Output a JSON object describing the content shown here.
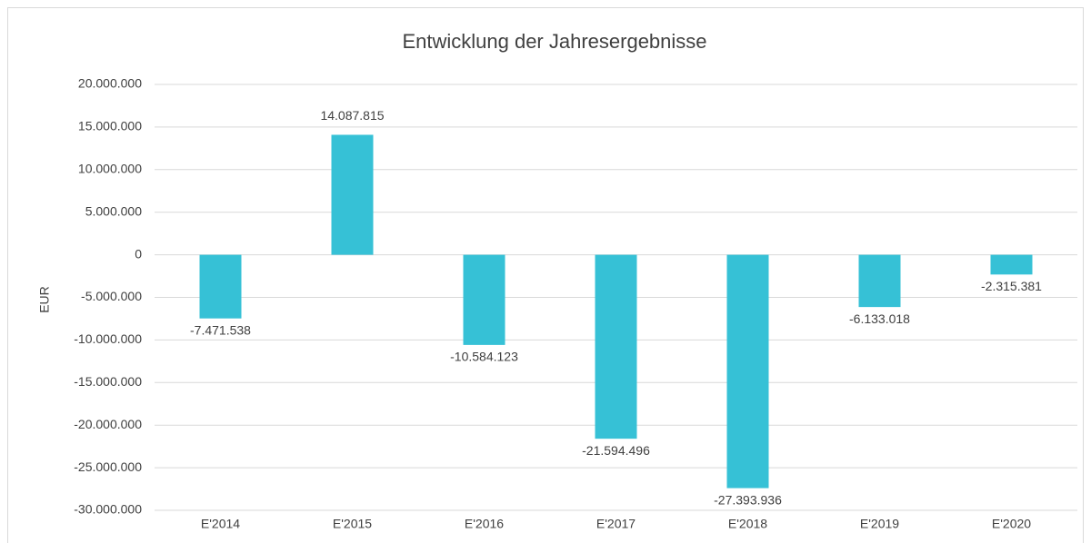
{
  "chart_data": {
    "type": "bar",
    "title": "Entwicklung der Jahresergebnisse",
    "y_label": "EUR",
    "categories": [
      "E'2014",
      "E'2015",
      "E'2016",
      "E'2017",
      "E'2018",
      "E'2019",
      "E'2020"
    ],
    "values": [
      -7471538,
      14087815,
      -10584123,
      -21594496,
      -27393936,
      -6133018,
      -2315381
    ],
    "value_labels": [
      "-7.471.538",
      "14.087.815",
      "-10.584.123",
      "-21.594.496",
      "-27.393.936",
      "-6.133.018",
      "-2.315.381"
    ],
    "color": "#36c1d6",
    "ylim": [
      -30000000,
      20000000
    ],
    "yticks": [
      {
        "value": -30000000,
        "label": "-30.000.000"
      },
      {
        "value": -25000000,
        "label": "-25.000.000"
      },
      {
        "value": -20000000,
        "label": "-20.000.000"
      },
      {
        "value": -15000000,
        "label": "-15.000.000"
      },
      {
        "value": -10000000,
        "label": "-10.000.000"
      },
      {
        "value": -5000000,
        "label": "-5.000.000"
      },
      0,
      {
        "value": 5000000,
        "label": "5.000.000"
      },
      {
        "value": 10000000,
        "label": "10.000.000"
      },
      {
        "value": 15000000,
        "label": "15.000.000"
      },
      {
        "value": 20000000,
        "label": "20.000.000"
      }
    ],
    "grid": true
  }
}
